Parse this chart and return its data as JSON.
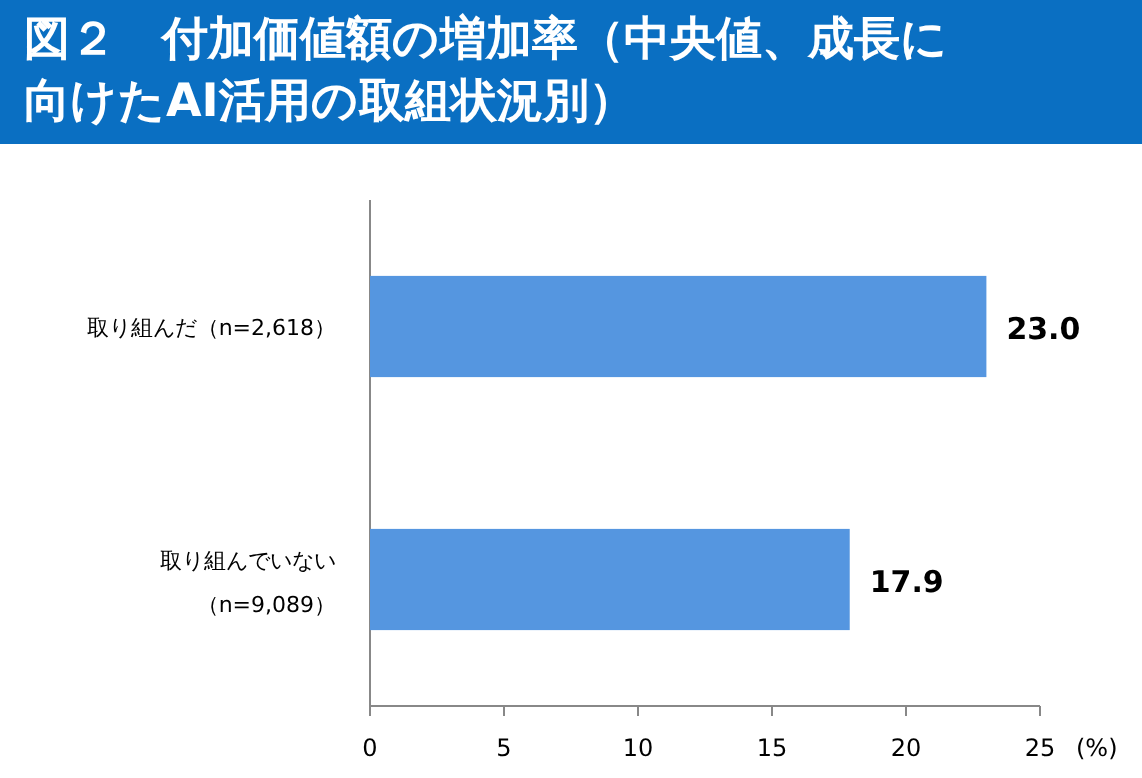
{
  "chart_data": {
    "type": "bar",
    "orientation": "horizontal",
    "title": "図２　付加価値額の増加率（中央値、成長に向けたAI活用の取組状況別）",
    "categories": [
      "取り組んだ（n=2,618）",
      "取り組んでいない（n=9,089）"
    ],
    "values": [
      23.0,
      17.9
    ],
    "value_labels": [
      "23.0",
      "17.9"
    ],
    "color": "#5596e0",
    "xlabel": "(%)",
    "xlim": [
      0,
      25
    ],
    "xticks": [
      0,
      5,
      10,
      15,
      20,
      25
    ],
    "grid": false
  }
}
